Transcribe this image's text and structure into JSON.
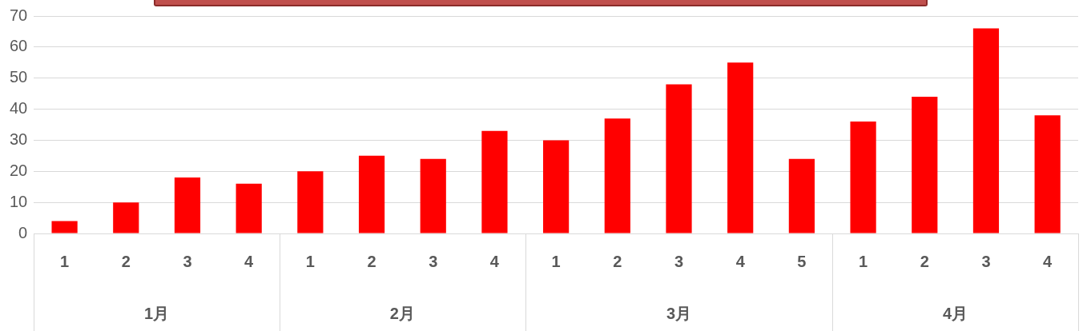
{
  "chart_data": {
    "type": "bar",
    "categories": [
      "1",
      "2",
      "3",
      "4",
      "1",
      "2",
      "3",
      "4",
      "1",
      "2",
      "3",
      "4",
      "5",
      "1",
      "2",
      "3",
      "4"
    ],
    "values": [
      4,
      10,
      18,
      16,
      20,
      25,
      24,
      33,
      30,
      37,
      48,
      55,
      24,
      36,
      44,
      66,
      38
    ],
    "color": "#ff0000",
    "ylim": [
      0,
      70
    ],
    "yticks": [
      0,
      10,
      20,
      30,
      40,
      50,
      60,
      70
    ],
    "grid": "y",
    "legend": false,
    "annotations": [
      "1月",
      "2月",
      "3月",
      "4月"
    ]
  }
}
